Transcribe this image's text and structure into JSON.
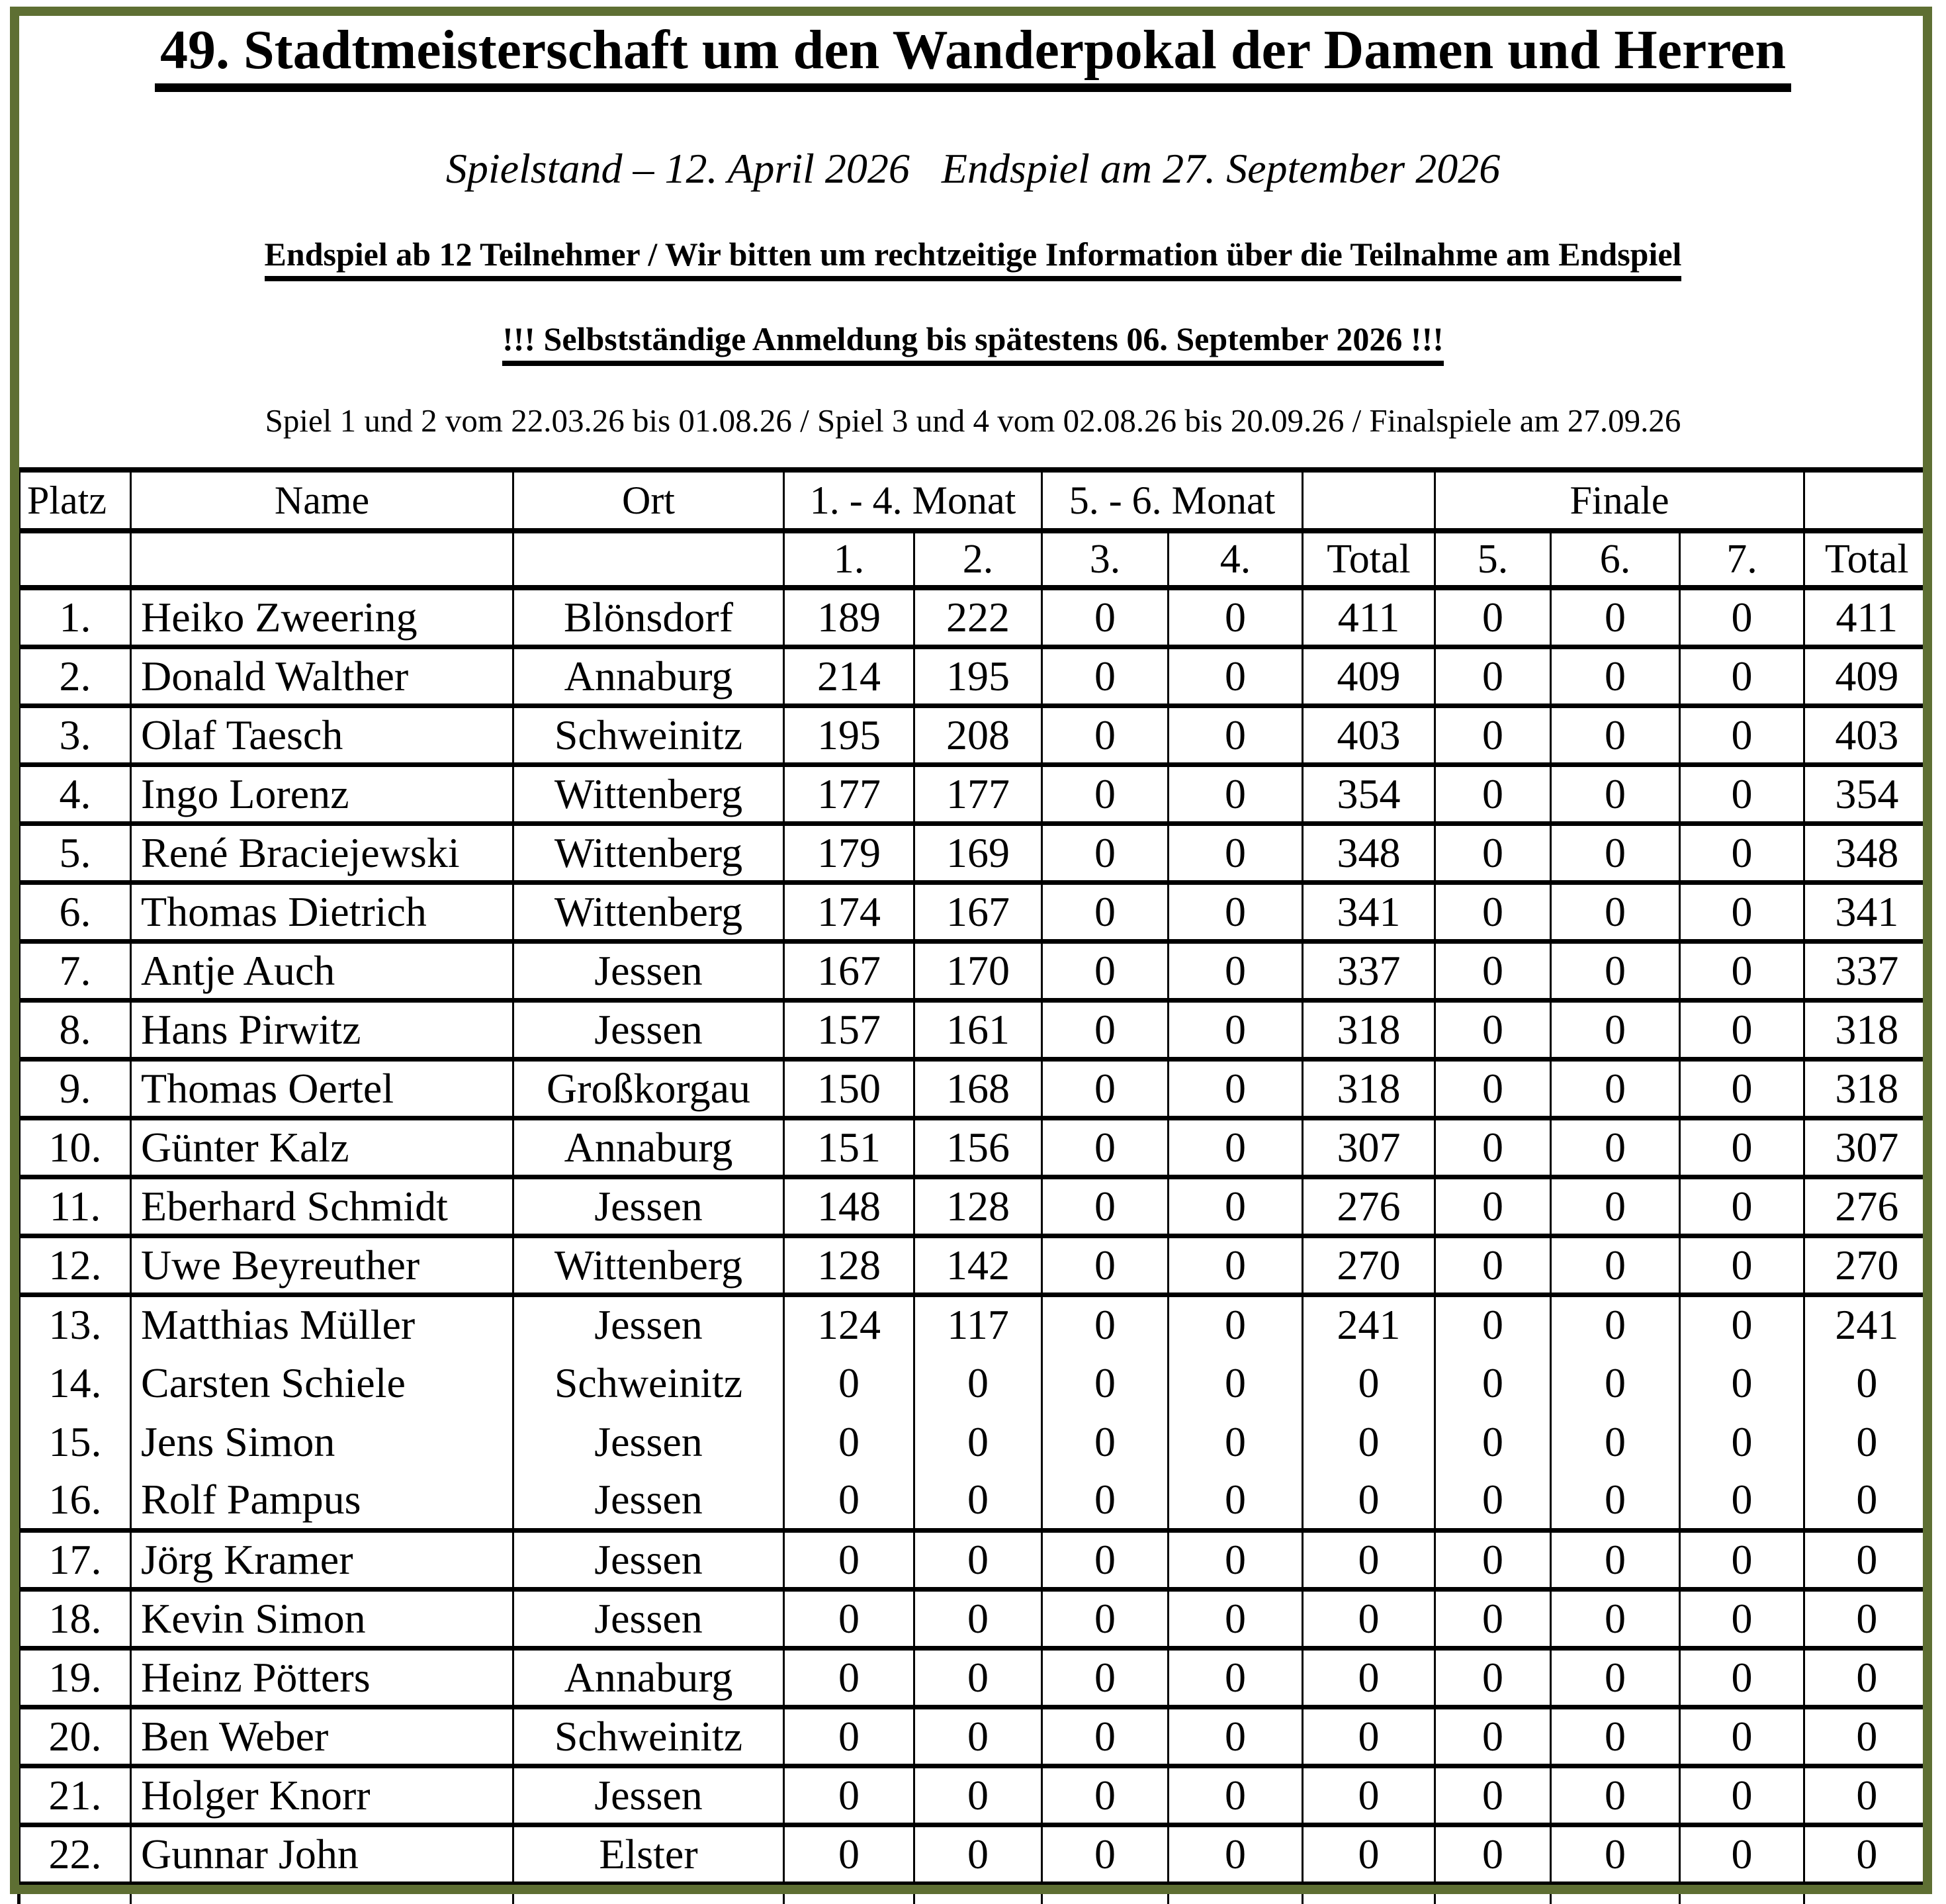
{
  "frame_color": "#5e6f33",
  "header": {
    "title": "49. Stadtmeisterschaft um den Wanderpokal der Damen und Herren",
    "subtitle": "Spielstand – 12. April 2026   Endspiel am 27. September 2026",
    "notice_endspiel": "Endspiel ab 12 Teilnehmer / Wir bitten um rechtzeitige Information über die Teilnahme am Endspiel",
    "notice_anmeldung": "!!! Selbstständige Anmeldung bis spätestens 06. September 2026 !!!",
    "schedule": "Spiel 1 und 2 vom 22.03.26 bis 01.08.26 / Spiel 3 und 4 vom 02.08.26 bis 20.09.26 / Finalspiele am 27.09.26"
  },
  "table": {
    "column_keys": [
      "platz",
      "name",
      "ort",
      "spiel1",
      "spiel2",
      "spiel3",
      "spiel4",
      "total",
      "finale5",
      "finale6",
      "finale7",
      "finale-total"
    ],
    "header_row1": {
      "platz": "Platz",
      "name": "Name",
      "ort": "Ort",
      "monat_1_4": "1. - 4. Monat",
      "monat_5_6": "5. - 6. Monat",
      "finale": "Finale"
    },
    "header_row2": [
      "",
      "",
      "",
      "1.",
      "2.",
      "3.",
      "4.",
      "Total",
      "5.",
      "6.",
      "7.",
      "Total"
    ],
    "rows": [
      [
        "1.",
        "Heiko Zweering",
        "Blönsdorf",
        "189",
        "222",
        "0",
        "0",
        "411",
        "0",
        "0",
        "0",
        "411"
      ],
      [
        "2.",
        "Donald Walther",
        "Annaburg",
        "214",
        "195",
        "0",
        "0",
        "409",
        "0",
        "0",
        "0",
        "409"
      ],
      [
        "3.",
        "Olaf Taesch",
        "Schweinitz",
        "195",
        "208",
        "0",
        "0",
        "403",
        "0",
        "0",
        "0",
        "403"
      ],
      [
        "4.",
        "Ingo Lorenz",
        "Wittenberg",
        "177",
        "177",
        "0",
        "0",
        "354",
        "0",
        "0",
        "0",
        "354"
      ],
      [
        "5.",
        "René Braciejewski",
        "Wittenberg",
        "179",
        "169",
        "0",
        "0",
        "348",
        "0",
        "0",
        "0",
        "348"
      ],
      [
        "6.",
        "Thomas Dietrich",
        "Wittenberg",
        "174",
        "167",
        "0",
        "0",
        "341",
        "0",
        "0",
        "0",
        "341"
      ],
      [
        "7.",
        "Antje Auch",
        "Jessen",
        "167",
        "170",
        "0",
        "0",
        "337",
        "0",
        "0",
        "0",
        "337"
      ],
      [
        "8.",
        "Hans Pirwitz",
        "Jessen",
        "157",
        "161",
        "0",
        "0",
        "318",
        "0",
        "0",
        "0",
        "318"
      ],
      [
        "9.",
        "Thomas Oertel",
        "Großkorgau",
        "150",
        "168",
        "0",
        "0",
        "318",
        "0",
        "0",
        "0",
        "318"
      ],
      [
        "10.",
        "Günter Kalz",
        "Annaburg",
        "151",
        "156",
        "0",
        "0",
        "307",
        "0",
        "0",
        "0",
        "307"
      ],
      [
        "11.",
        "Eberhard Schmidt",
        "Jessen",
        "148",
        "128",
        "0",
        "0",
        "276",
        "0",
        "0",
        "0",
        "276"
      ],
      [
        "12.",
        "Uwe Beyreuther",
        "Wittenberg",
        "128",
        "142",
        "0",
        "0",
        "270",
        "0",
        "0",
        "0",
        "270"
      ],
      [
        "13.",
        "Matthias Müller",
        "Jessen",
        "124",
        "117",
        "0",
        "0",
        "241",
        "0",
        "0",
        "0",
        "241"
      ],
      [
        "14.",
        "Carsten Schiele",
        "Schweinitz",
        "0",
        "0",
        "0",
        "0",
        "0",
        "0",
        "0",
        "0",
        "0"
      ],
      [
        "15.",
        "Jens Simon",
        "Jessen",
        "0",
        "0",
        "0",
        "0",
        "0",
        "0",
        "0",
        "0",
        "0"
      ],
      [
        "16.",
        "Rolf Pampus",
        "Jessen",
        "0",
        "0",
        "0",
        "0",
        "0",
        "0",
        "0",
        "0",
        "0"
      ],
      [
        "17.",
        "Jörg Kramer",
        "Jessen",
        "0",
        "0",
        "0",
        "0",
        "0",
        "0",
        "0",
        "0",
        "0"
      ],
      [
        "18.",
        "Kevin Simon",
        "Jessen",
        "0",
        "0",
        "0",
        "0",
        "0",
        "0",
        "0",
        "0",
        "0"
      ],
      [
        "19.",
        "Heinz Pötters",
        "Annaburg",
        "0",
        "0",
        "0",
        "0",
        "0",
        "0",
        "0",
        "0",
        "0"
      ],
      [
        "20.",
        "Ben Weber",
        "Schweinitz",
        "0",
        "0",
        "0",
        "0",
        "0",
        "0",
        "0",
        "0",
        "0"
      ],
      [
        "21.",
        "Holger Knorr",
        "Jessen",
        "0",
        "0",
        "0",
        "0",
        "0",
        "0",
        "0",
        "0",
        "0"
      ],
      [
        "22.",
        "Gunnar John",
        "Elster",
        "0",
        "0",
        "0",
        "0",
        "0",
        "0",
        "0",
        "0",
        "0"
      ]
    ]
  }
}
